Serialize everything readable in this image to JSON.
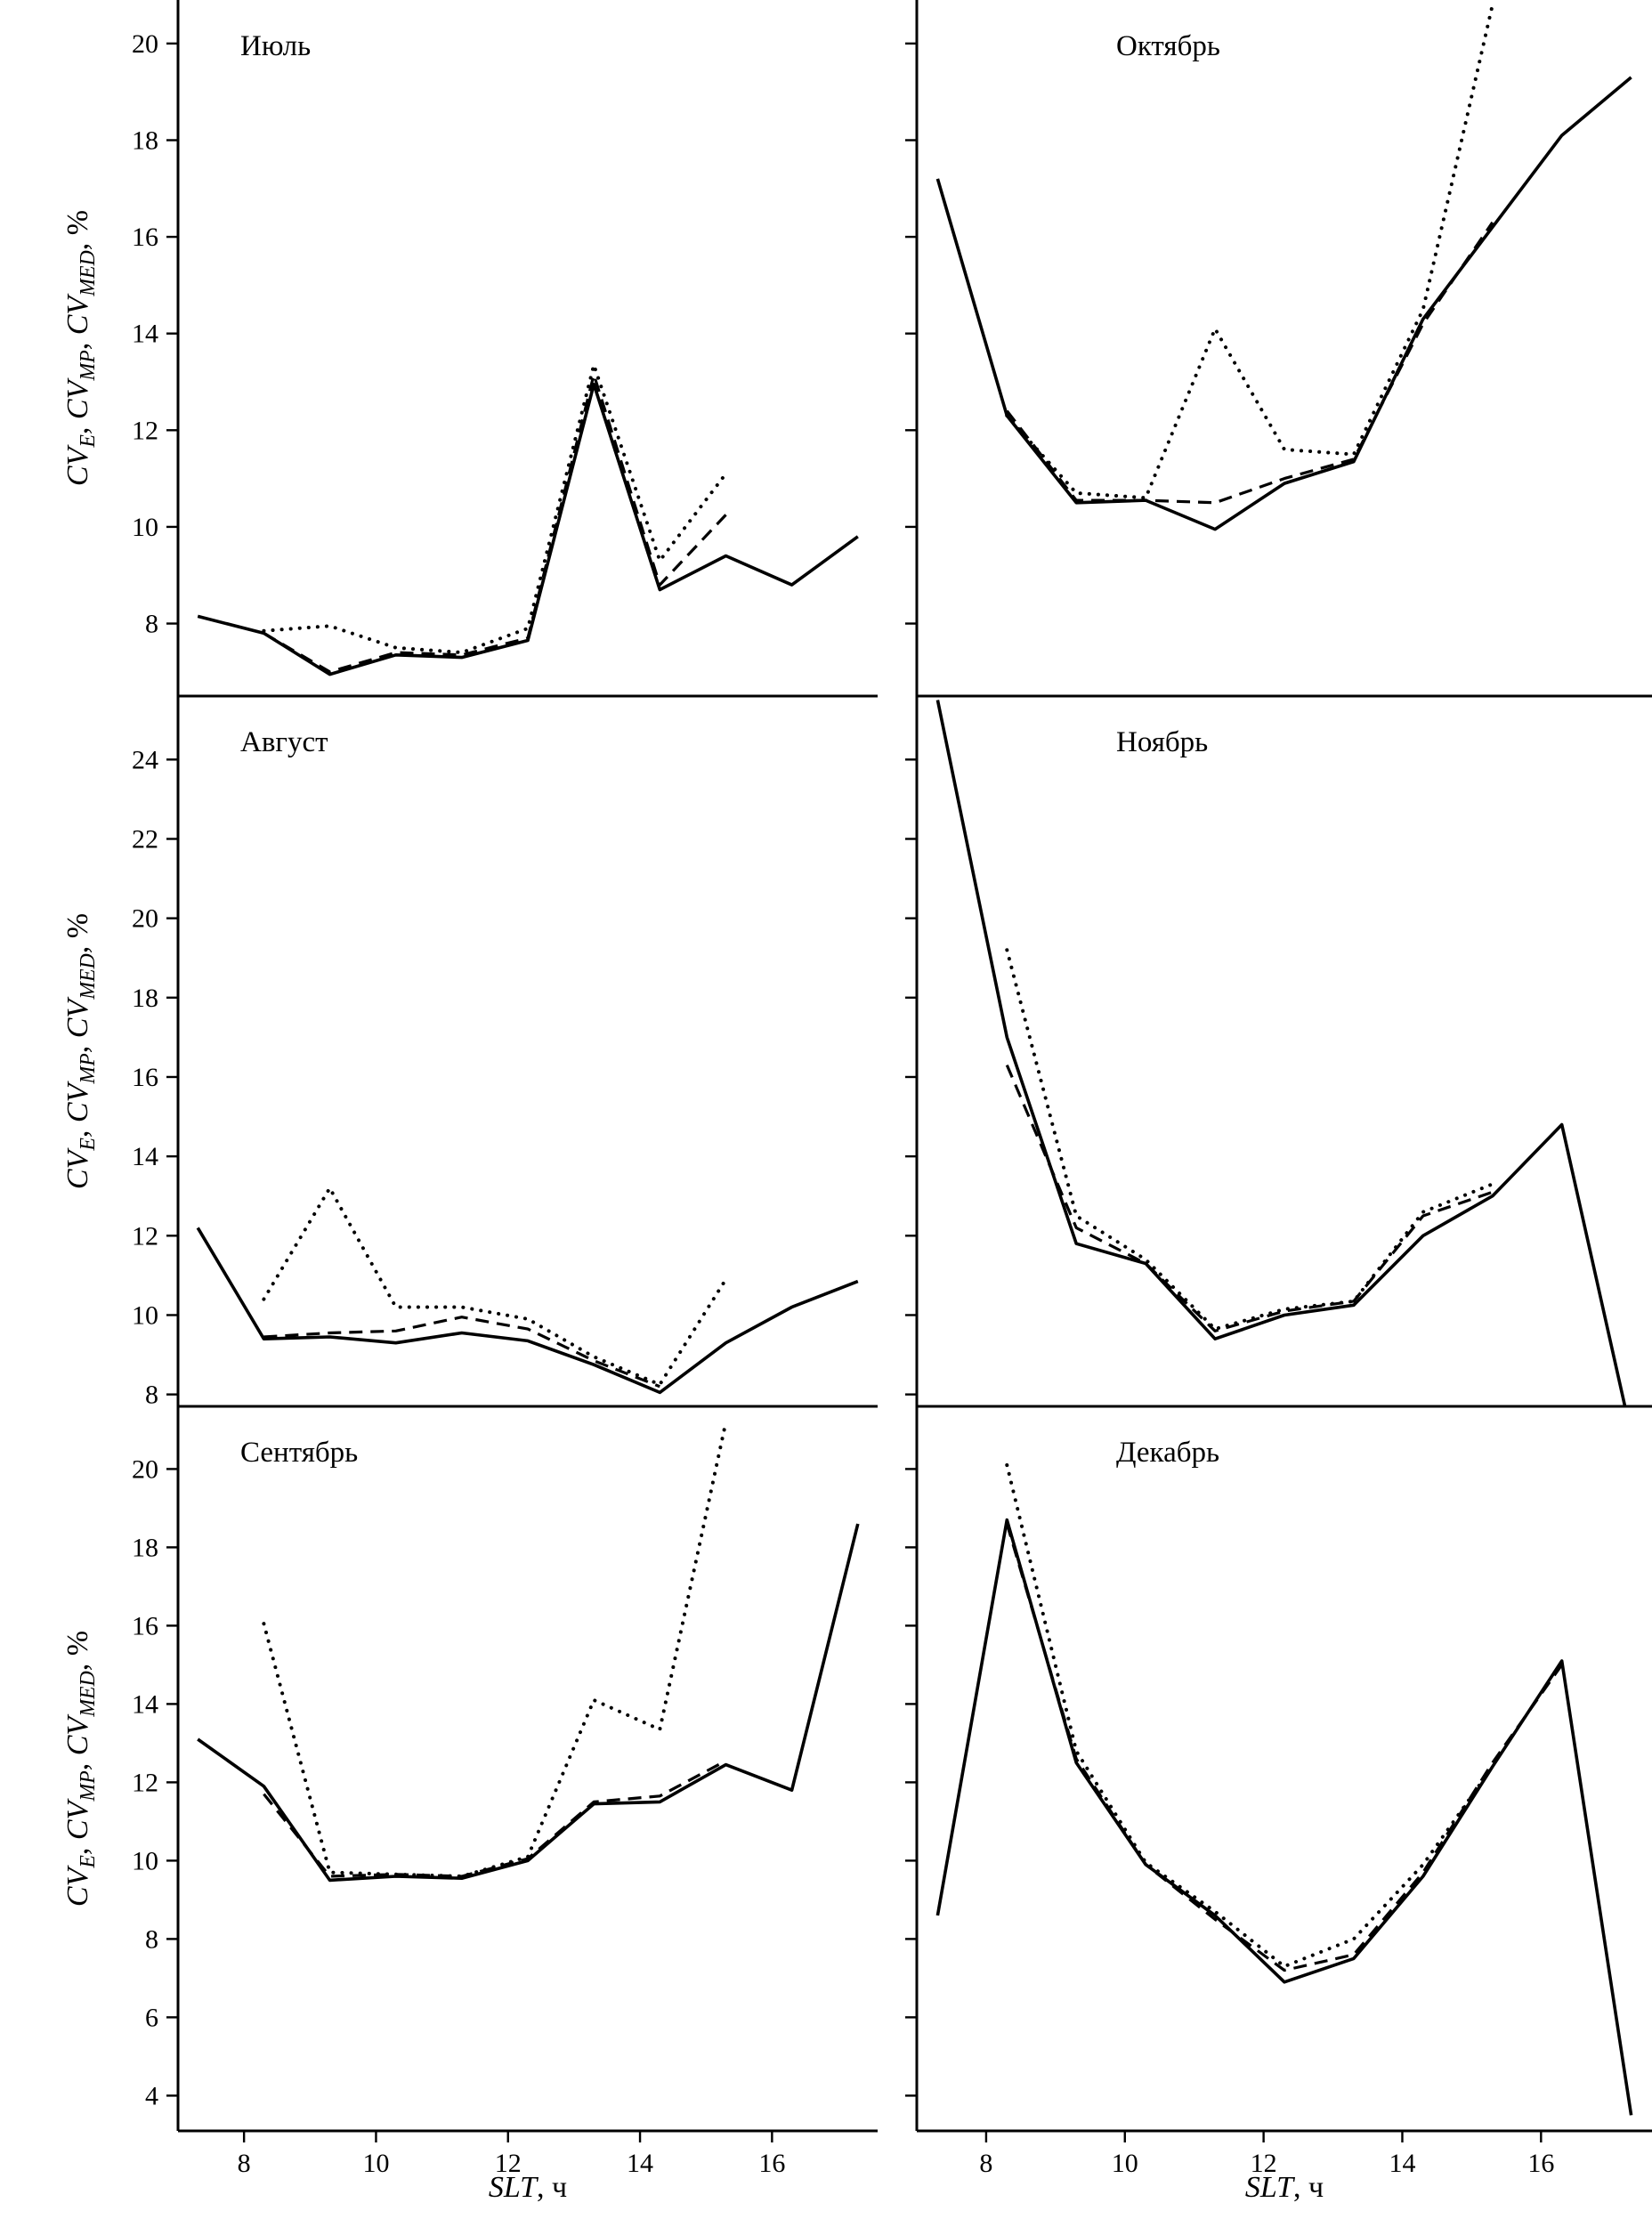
{
  "figure": {
    "xlabel_italic": "SLT",
    "xlabel_rest": ", ч",
    "ylabel": {
      "terms": [
        {
          "base": "CV",
          "sub": "E"
        },
        {
          "base": "CV",
          "sub": "MP"
        },
        {
          "base": "CV",
          "sub": "MED"
        }
      ],
      "suffix": ", %"
    }
  },
  "chart_data": [
    {
      "type": "line",
      "title": "Июль",
      "x": [
        7.3,
        8.3,
        9.3,
        10.3,
        11.3,
        12.3,
        13.3,
        14.3,
        15.3,
        16.3,
        17.3
      ],
      "xlim": [
        7.0,
        17.6
      ],
      "xticks": [
        8,
        10,
        12,
        14,
        16
      ],
      "ylim": [
        6.5,
        20.9
      ],
      "yticks": [
        8,
        10,
        12,
        14,
        16,
        18,
        20
      ],
      "series": [
        {
          "name": "solid",
          "style": "solid",
          "values": [
            8.15,
            7.8,
            6.95,
            7.35,
            7.3,
            7.65,
            12.95,
            8.7,
            9.4,
            8.8,
            9.8
          ]
        },
        {
          "name": "dashed",
          "style": "dashed",
          "values": [
            null,
            7.8,
            7.0,
            7.4,
            7.35,
            7.7,
            13.15,
            8.8,
            10.25,
            null,
            null
          ]
        },
        {
          "name": "dotted",
          "style": "dotted",
          "values": [
            null,
            7.85,
            7.95,
            7.5,
            7.4,
            7.9,
            13.35,
            9.3,
            11.1,
            null,
            null
          ]
        }
      ]
    },
    {
      "type": "line",
      "title": "Октябрь",
      "x": [
        7.3,
        8.3,
        9.3,
        10.3,
        11.3,
        12.3,
        13.3,
        14.3,
        15.3,
        16.3,
        17.3
      ],
      "xlim": [
        7.0,
        17.6
      ],
      "xticks": [
        8,
        10,
        12,
        14,
        16
      ],
      "ylim": [
        6.5,
        20.9
      ],
      "yticks": [
        8,
        10,
        12,
        14,
        16,
        18,
        20
      ],
      "series": [
        {
          "name": "solid",
          "style": "solid",
          "values": [
            17.2,
            12.3,
            10.5,
            10.55,
            9.95,
            10.9,
            11.35,
            14.3,
            16.2,
            18.1,
            19.3
          ]
        },
        {
          "name": "dashed",
          "style": "dashed",
          "values": [
            null,
            12.4,
            10.55,
            10.55,
            10.5,
            11.0,
            11.4,
            14.2,
            16.3,
            null,
            null
          ]
        },
        {
          "name": "dotted",
          "style": "dotted",
          "values": [
            null,
            12.3,
            10.7,
            10.6,
            14.1,
            11.6,
            11.5,
            14.5,
            20.8,
            null,
            null
          ]
        }
      ]
    },
    {
      "type": "line",
      "title": "Август",
      "x": [
        7.3,
        8.3,
        9.3,
        10.3,
        11.3,
        12.3,
        13.3,
        14.3,
        15.3,
        16.3,
        17.3
      ],
      "xlim": [
        7.0,
        17.6
      ],
      "xticks": [
        8,
        10,
        12,
        14,
        16
      ],
      "ylim": [
        7.7,
        25.6
      ],
      "yticks": [
        8,
        10,
        12,
        14,
        16,
        18,
        20,
        22,
        24
      ],
      "series": [
        {
          "name": "solid",
          "style": "solid",
          "values": [
            12.2,
            9.4,
            9.45,
            9.3,
            9.55,
            9.35,
            8.75,
            8.05,
            9.3,
            10.2,
            10.85
          ]
        },
        {
          "name": "dashed",
          "style": "dashed",
          "values": [
            null,
            9.45,
            9.55,
            9.6,
            9.95,
            9.65,
            8.85,
            8.2,
            null,
            null,
            null
          ]
        },
        {
          "name": "dotted",
          "style": "dotted",
          "values": [
            null,
            10.4,
            13.2,
            10.2,
            10.2,
            9.9,
            8.95,
            8.25,
            10.9,
            null,
            null
          ]
        }
      ]
    },
    {
      "type": "line",
      "title": "Ноябрь",
      "x": [
        7.3,
        8.3,
        9.3,
        10.3,
        11.3,
        12.3,
        13.3,
        14.3,
        15.3,
        16.3,
        17.3
      ],
      "xlim": [
        7.0,
        17.6
      ],
      "xticks": [
        8,
        10,
        12,
        14,
        16
      ],
      "ylim": [
        7.7,
        25.6
      ],
      "yticks": [
        8,
        10,
        12,
        14,
        16,
        18,
        20,
        22,
        24
      ],
      "series": [
        {
          "name": "solid",
          "style": "solid",
          "values": [
            25.5,
            17.0,
            11.8,
            11.3,
            9.4,
            10.0,
            10.25,
            12.0,
            13.0,
            14.8,
            7.0
          ]
        },
        {
          "name": "dashed",
          "style": "dashed",
          "values": [
            null,
            16.3,
            12.2,
            11.3,
            9.6,
            10.1,
            10.35,
            12.5,
            13.1,
            null,
            null
          ]
        },
        {
          "name": "dotted",
          "style": "dotted",
          "values": [
            null,
            19.2,
            12.5,
            11.4,
            9.65,
            10.15,
            10.35,
            12.6,
            13.3,
            null,
            null
          ]
        }
      ]
    },
    {
      "type": "line",
      "title": "Сентябрь",
      "x": [
        7.3,
        8.3,
        9.3,
        10.3,
        11.3,
        12.3,
        13.3,
        14.3,
        15.3,
        16.3,
        17.3
      ],
      "xlim": [
        7.0,
        17.6
      ],
      "xticks": [
        8,
        10,
        12,
        14,
        16
      ],
      "ylim": [
        3.1,
        21.6
      ],
      "yticks": [
        4,
        6,
        8,
        10,
        12,
        14,
        16,
        18,
        20
      ],
      "series": [
        {
          "name": "solid",
          "style": "solid",
          "values": [
            13.1,
            11.9,
            9.5,
            9.6,
            9.55,
            10.0,
            11.45,
            11.5,
            12.45,
            11.8,
            18.6
          ]
        },
        {
          "name": "dashed",
          "style": "dashed",
          "values": [
            null,
            11.7,
            9.6,
            9.65,
            9.6,
            10.05,
            11.5,
            11.65,
            12.55,
            null,
            null
          ]
        },
        {
          "name": "dotted",
          "style": "dotted",
          "values": [
            null,
            16.05,
            9.7,
            9.65,
            9.6,
            10.1,
            14.1,
            13.35,
            21.2,
            null,
            null
          ]
        }
      ]
    },
    {
      "type": "line",
      "title": "Декабрь",
      "x": [
        7.3,
        8.3,
        9.3,
        10.3,
        11.3,
        12.3,
        13.3,
        14.3,
        15.3,
        16.3,
        17.3
      ],
      "xlim": [
        7.0,
        17.6
      ],
      "xticks": [
        8,
        10,
        12,
        14,
        16
      ],
      "ylim": [
        3.1,
        21.6
      ],
      "yticks": [
        4,
        6,
        8,
        10,
        12,
        14,
        16,
        18,
        20
      ],
      "series": [
        {
          "name": "solid",
          "style": "solid",
          "values": [
            8.6,
            18.7,
            12.5,
            9.9,
            8.6,
            6.9,
            7.5,
            9.6,
            12.4,
            15.1,
            3.5
          ]
        },
        {
          "name": "dashed",
          "style": "dashed",
          "values": [
            null,
            18.6,
            12.6,
            9.9,
            8.5,
            7.2,
            7.6,
            9.7,
            12.5,
            15.0,
            null
          ]
        },
        {
          "name": "dotted",
          "style": "dotted",
          "values": [
            null,
            20.1,
            12.8,
            9.95,
            8.7,
            7.3,
            8.0,
            9.9,
            12.4,
            null,
            null
          ]
        }
      ]
    }
  ]
}
